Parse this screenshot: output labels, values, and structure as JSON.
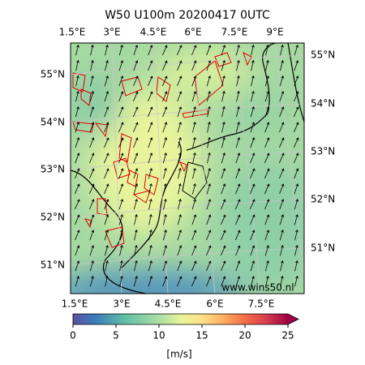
{
  "title": "W50 U100m 20200417 0UTC",
  "lon_labels_top": [
    "1.5°E",
    "3°E",
    "4.5°E",
    "6°E",
    "7.5°E",
    "9°E"
  ],
  "lon_labels_bottom": [
    "1.5°E",
    "3°E",
    "4.5°E",
    "6°E",
    "7.5°E"
  ],
  "lat_labels_left": [
    "55°N",
    "54°N",
    "53°N",
    "52°N",
    "51°N"
  ],
  "lat_labels_right": [
    "55°N",
    "54°N",
    "53°N",
    "52°N",
    "51°N"
  ],
  "watermark": "www.wins50.nl",
  "colorbar": {
    "lim": [
      0,
      25
    ],
    "ticks": [
      0,
      5,
      10,
      15,
      20,
      25
    ],
    "label": "[m/s]"
  }
}
